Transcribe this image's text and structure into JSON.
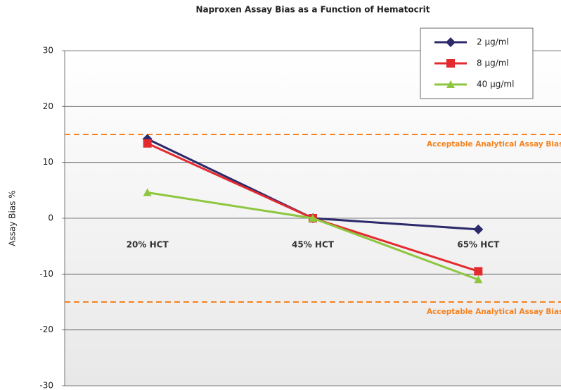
{
  "chart_data": {
    "type": "line",
    "title": "Naproxen Assay Bias as a Function of Hematocrit",
    "y_label": "Assay Bias %",
    "categories": [
      "20% HCT",
      "45% HCT",
      "65% HCT"
    ],
    "series": [
      {
        "name": "2 µg/ml",
        "color": "#2b2a6b",
        "marker": "diamond",
        "values": [
          14.2,
          0,
          -2
        ]
      },
      {
        "name": "8 µg/ml",
        "color": "#e32a2f",
        "marker": "square",
        "values": [
          13.4,
          0,
          -9.5
        ]
      },
      {
        "name": "40 µg/ml",
        "color": "#8dc63f",
        "marker": "triangle",
        "values": [
          4.6,
          0,
          -11
        ]
      }
    ],
    "reference_lines": [
      {
        "value": 15,
        "label": "Acceptable Analytical Assay Bias",
        "color": "#f58220"
      },
      {
        "value": -15,
        "label": "Acceptable Analytical Assay Bias",
        "color": "#f58220"
      }
    ],
    "ylim": [
      -30,
      30
    ],
    "yticks": [
      -30,
      -20,
      -10,
      0,
      10,
      20,
      30
    ],
    "grid": true,
    "legend": "upper right"
  }
}
